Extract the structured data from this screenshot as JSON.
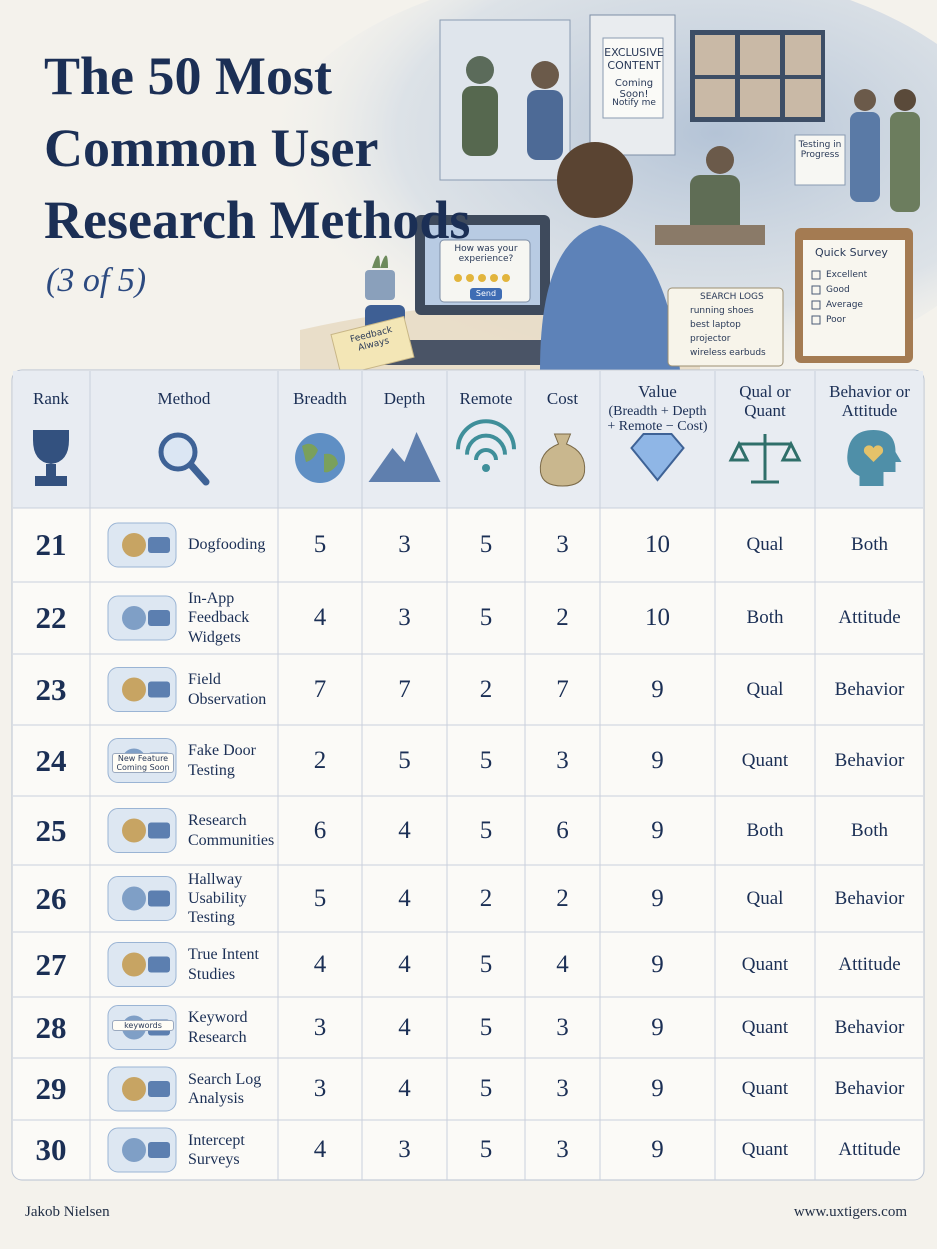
{
  "header": {
    "title": "The 50 Most Common User Research Methods",
    "subtitle": "(3 of 5)"
  },
  "illustration": {
    "door_sign": [
      "EXCLUSIVE CONTENT",
      "Coming Soon!",
      "Notify me"
    ],
    "hall_sign": "Testing in Progress",
    "laptop_prompt": "How was your experience?",
    "laptop_button": "Send",
    "sticky_note": "Feedback Always",
    "search_logs": {
      "title": "SEARCH LOGS",
      "items": [
        "running shoes",
        "best laptop",
        "projector",
        "wireless earbuds"
      ]
    },
    "survey": {
      "title": "Quick Survey",
      "items": [
        "Excellent",
        "Good",
        "Average",
        "Poor"
      ]
    }
  },
  "table": {
    "columns": [
      "Rank",
      "Method",
      "Breadth",
      "Depth",
      "Remote",
      "Cost",
      "Value",
      "Qual or Quant",
      "Behavior or Attitude"
    ],
    "value_formula": "(Breadth + Depth + Remote − Cost)",
    "rows": [
      [
        21,
        "Dogfooding",
        5,
        3,
        5,
        3,
        10,
        "Qual",
        "Both"
      ],
      [
        22,
        "In-App Feedback Widgets",
        4,
        3,
        5,
        2,
        10,
        "Both",
        "Attitude"
      ],
      [
        23,
        "Field Observation",
        7,
        7,
        2,
        7,
        9,
        "Qual",
        "Behavior"
      ],
      [
        24,
        "Fake Door Testing",
        2,
        5,
        5,
        3,
        9,
        "Quant",
        "Behavior"
      ],
      [
        25,
        "Research Communities",
        6,
        4,
        5,
        6,
        9,
        "Both",
        "Both"
      ],
      [
        26,
        "Hallway Usability Testing",
        5,
        4,
        2,
        2,
        9,
        "Qual",
        "Behavior"
      ],
      [
        27,
        "True Intent Studies",
        4,
        4,
        5,
        4,
        9,
        "Quant",
        "Attitude"
      ],
      [
        28,
        "Keyword Research",
        3,
        4,
        5,
        3,
        9,
        "Quant",
        "Behavior"
      ],
      [
        29,
        "Search Log Analysis",
        3,
        4,
        5,
        3,
        9,
        "Quant",
        "Behavior"
      ],
      [
        30,
        "Intercept Surveys",
        4,
        3,
        5,
        3,
        9,
        "Quant",
        "Attitude"
      ]
    ],
    "row_icon_labels": {
      "3": "New Feature Coming Soon",
      "7": "keywords"
    }
  },
  "footer": {
    "author": "Jakob Nielsen",
    "url": "www.uxtigers.com"
  }
}
